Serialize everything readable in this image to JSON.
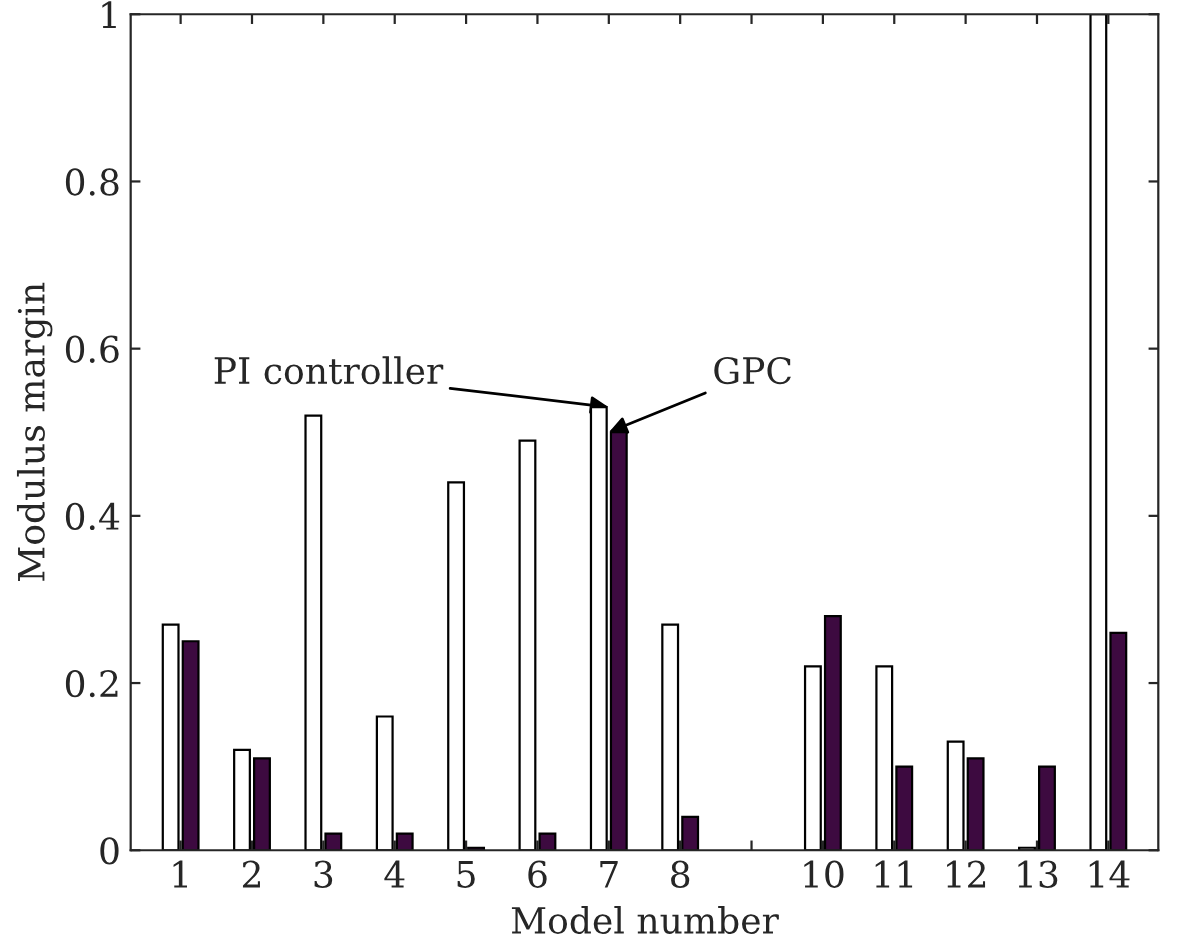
{
  "chart_data": {
    "type": "bar",
    "xlabel": "Model number",
    "ylabel": "Modulus margin",
    "categories": [
      "1",
      "2",
      "3",
      "4",
      "5",
      "6",
      "7",
      "8",
      null,
      "10",
      "11",
      "12",
      "13",
      "14"
    ],
    "series": [
      {
        "color": "#ffffff",
        "values": [
          0.27,
          0.12,
          0.52,
          0.16,
          0.44,
          0.49,
          0.53,
          0.27,
          null,
          0.22,
          0.22,
          0.13,
          0.003,
          1.0
        ]
      },
      {
        "color": "#3d0a40",
        "values": [
          0.25,
          0.11,
          0.02,
          0.02,
          0.003,
          0.02,
          0.5,
          0.04,
          null,
          0.28,
          0.1,
          0.11,
          0.1,
          0.26
        ]
      }
    ],
    "ylim": [
      0,
      1
    ],
    "yticks": [
      0,
      0.2,
      0.4,
      0.6,
      0.8,
      1
    ],
    "grid": false,
    "legend": false,
    "annotations": [
      {
        "text": "PI controller",
        "x": "7",
        "y": 0.53
      },
      {
        "text": "GPC",
        "x": "7",
        "y": 0.5
      }
    ]
  }
}
